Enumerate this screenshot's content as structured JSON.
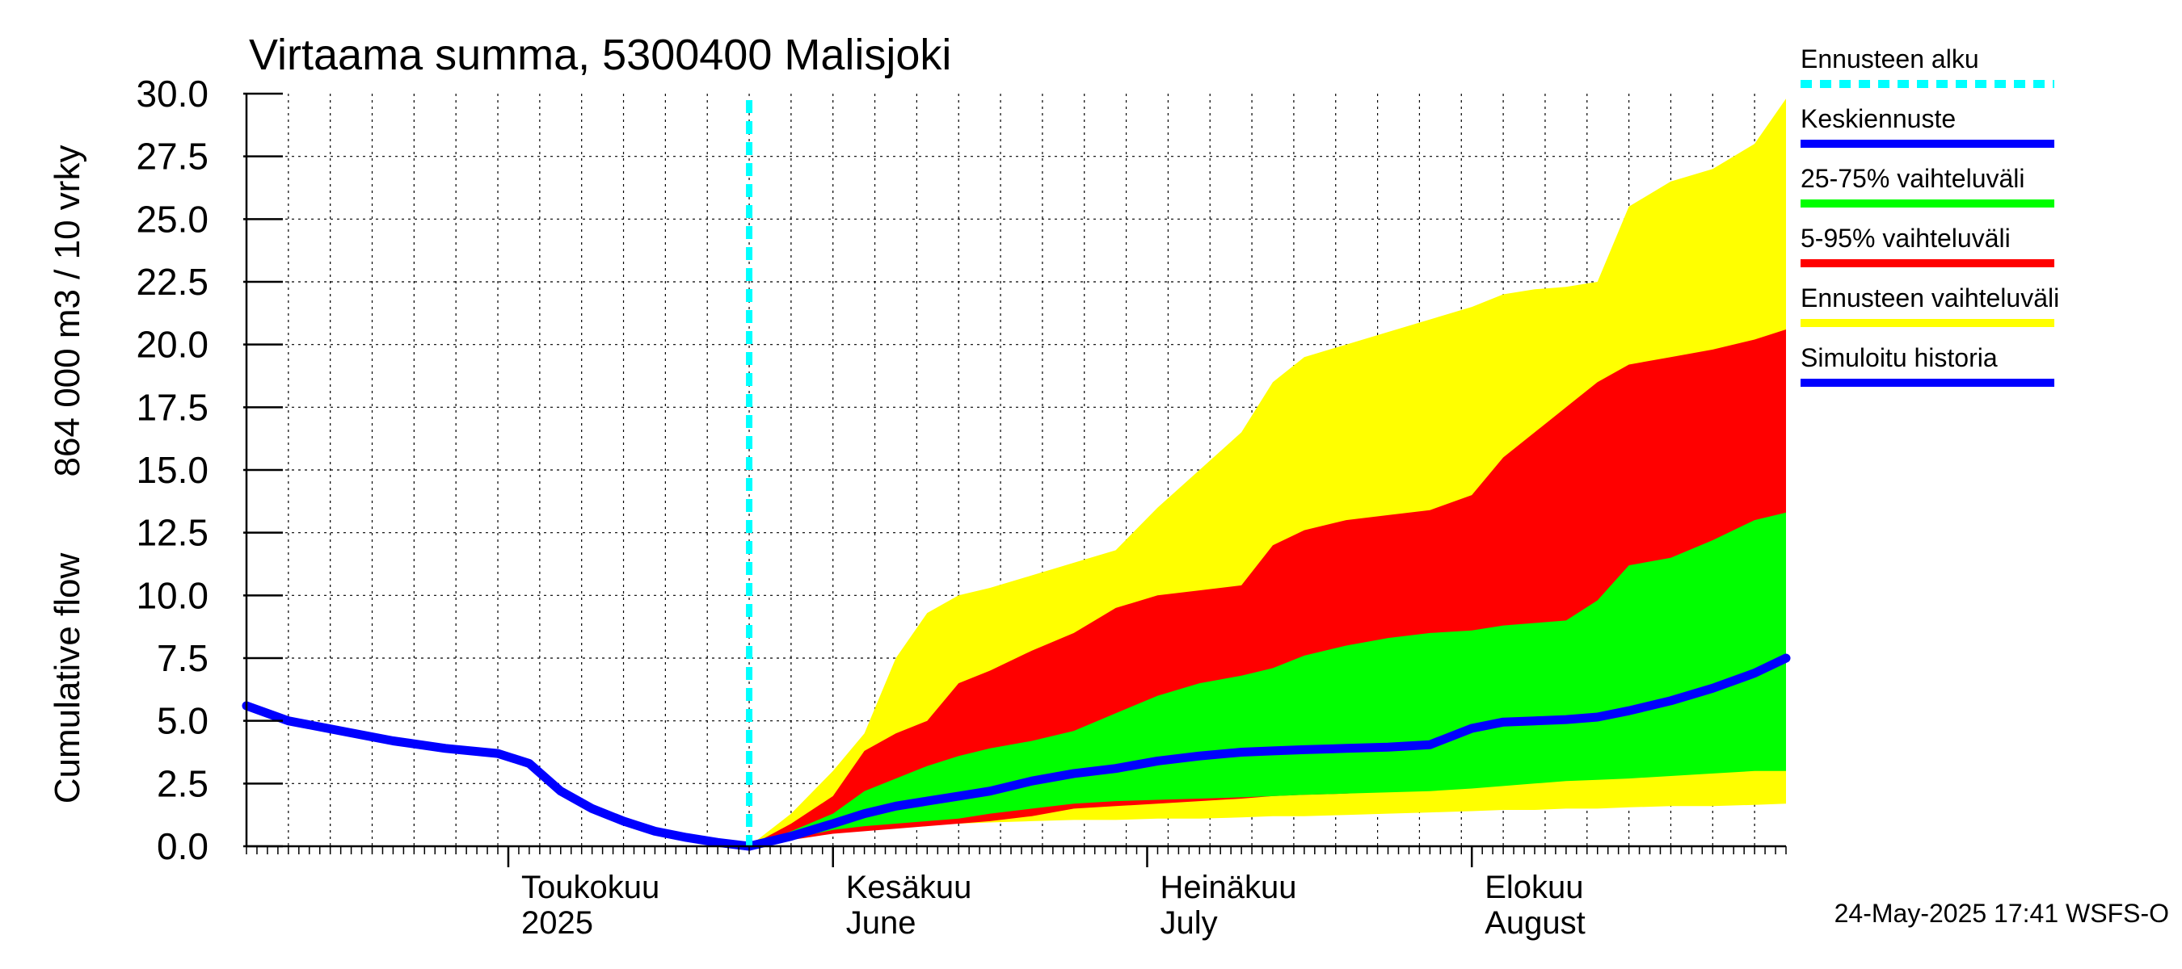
{
  "chart_data": {
    "type": "area",
    "title": "Virtaama summa, 5300400 Malisjoki",
    "ylabel_fi": "Cumulative flow",
    "ylabel_unit": "864 000 m3 / 10 vrky",
    "ylim": [
      0,
      30
    ],
    "yticks": [
      "0.0",
      "2.5",
      "5.0",
      "7.5",
      "10.0",
      "12.5",
      "15.0",
      "17.5",
      "20.0",
      "22.5",
      "25.0",
      "27.5",
      "30.0"
    ],
    "xlim": [
      "2025-04-06",
      "2025-08-31"
    ],
    "grid": true,
    "month_labels": [
      {
        "date": "2025-05-01",
        "line1": "Toukokuu",
        "line2": "2025"
      },
      {
        "date": "2025-06-01",
        "line1": "Kesäkuu",
        "line2": "June"
      },
      {
        "date": "2025-07-01",
        "line1": "Heinäkuu",
        "line2": "July"
      },
      {
        "date": "2025-08-01",
        "line1": "Elokuu",
        "line2": "August"
      }
    ],
    "forecast_start": "2025-05-24",
    "history": {
      "x": [
        "2025-04-06",
        "2025-04-10",
        "2025-04-15",
        "2025-04-20",
        "2025-04-25",
        "2025-04-30",
        "2025-05-03",
        "2025-05-06",
        "2025-05-09",
        "2025-05-12",
        "2025-05-15",
        "2025-05-18",
        "2025-05-21",
        "2025-05-24"
      ],
      "y": [
        5.6,
        5.0,
        4.6,
        4.2,
        3.9,
        3.7,
        3.3,
        2.2,
        1.5,
        1.0,
        0.6,
        0.35,
        0.15,
        0.0
      ]
    },
    "forecast_x": [
      "2025-05-24",
      "2025-05-28",
      "2025-06-01",
      "2025-06-04",
      "2025-06-07",
      "2025-06-10",
      "2025-06-13",
      "2025-06-16",
      "2025-06-20",
      "2025-06-24",
      "2025-06-28",
      "2025-07-02",
      "2025-07-06",
      "2025-07-10",
      "2025-07-13",
      "2025-07-16",
      "2025-07-20",
      "2025-07-24",
      "2025-07-28",
      "2025-08-01",
      "2025-08-04",
      "2025-08-07",
      "2025-08-10",
      "2025-08-13",
      "2025-08-16",
      "2025-08-20",
      "2025-08-24",
      "2025-08-28",
      "2025-08-31"
    ],
    "series": [
      {
        "name": "Ennusteen vaihteluväli",
        "color": "#ffff00",
        "lower": [
          0,
          0.3,
          0.6,
          0.7,
          0.8,
          0.85,
          0.9,
          0.95,
          1.0,
          1.05,
          1.05,
          1.1,
          1.1,
          1.15,
          1.2,
          1.2,
          1.25,
          1.3,
          1.35,
          1.4,
          1.45,
          1.45,
          1.5,
          1.5,
          1.55,
          1.6,
          1.6,
          1.65,
          1.7
        ],
        "upper": [
          0,
          1.3,
          3.0,
          4.5,
          7.5,
          9.3,
          10.0,
          10.3,
          10.8,
          11.3,
          11.8,
          13.5,
          15.0,
          16.5,
          18.5,
          19.5,
          20.0,
          20.5,
          21.0,
          21.5,
          22.0,
          22.2,
          22.3,
          22.5,
          25.5,
          26.5,
          27.0,
          28.0,
          29.8
        ]
      },
      {
        "name": "5-95% vaihteluväli",
        "color": "#ff0000",
        "lower": [
          0,
          0.25,
          0.5,
          0.6,
          0.7,
          0.8,
          0.9,
          1.0,
          1.2,
          1.5,
          1.6,
          1.7,
          1.8,
          1.9,
          2.0,
          2.05,
          2.1,
          2.2,
          2.3,
          2.5,
          2.6,
          2.8,
          2.9,
          3.0,
          3.1,
          3.2,
          3.3,
          3.6,
          3.8
        ],
        "upper": [
          0,
          0.9,
          2.0,
          3.8,
          4.5,
          5.0,
          6.5,
          7.0,
          7.8,
          8.5,
          9.5,
          10.0,
          10.2,
          10.4,
          12.0,
          12.6,
          13.0,
          13.2,
          13.4,
          14.0,
          15.5,
          16.5,
          17.5,
          18.5,
          19.2,
          19.5,
          19.8,
          20.2,
          20.6
        ]
      },
      {
        "name": "25-75% vaihteluväli",
        "color": "#00ff00",
        "lower": [
          0,
          0.3,
          0.65,
          0.8,
          0.9,
          1.0,
          1.1,
          1.3,
          1.5,
          1.7,
          1.8,
          1.85,
          1.9,
          1.95,
          2.0,
          2.05,
          2.1,
          2.15,
          2.2,
          2.3,
          2.4,
          2.5,
          2.6,
          2.65,
          2.7,
          2.8,
          2.9,
          3.0,
          3.0
        ],
        "upper": [
          0,
          0.6,
          1.3,
          2.2,
          2.7,
          3.2,
          3.6,
          3.9,
          4.2,
          4.6,
          5.3,
          6.0,
          6.5,
          6.8,
          7.1,
          7.6,
          8.0,
          8.3,
          8.5,
          8.6,
          8.8,
          8.9,
          9.0,
          9.8,
          11.2,
          11.5,
          12.2,
          13.0,
          13.3
        ]
      },
      {
        "name": "Keskiennuste",
        "color": "#0000ff",
        "values": [
          0,
          0.4,
          0.9,
          1.3,
          1.6,
          1.8,
          2.0,
          2.2,
          2.6,
          2.9,
          3.1,
          3.4,
          3.6,
          3.75,
          3.8,
          3.85,
          3.9,
          3.95,
          4.05,
          4.7,
          4.95,
          5.0,
          5.05,
          5.15,
          5.4,
          5.8,
          6.3,
          6.9,
          7.5
        ]
      }
    ],
    "legend": [
      {
        "label": "Ennusteen alku",
        "color": "#00ffff",
        "style": "dashed"
      },
      {
        "label": "Keskiennuste",
        "color": "#0000ff",
        "style": "solid"
      },
      {
        "label": "25-75% vaihteluväli",
        "color": "#00ff00",
        "style": "solid"
      },
      {
        "label": "5-95% vaihteluväli",
        "color": "#ff0000",
        "style": "solid"
      },
      {
        "label": "Ennusteen vaihteluväli",
        "color": "#ffff00",
        "style": "solid"
      },
      {
        "label": "Simuloitu historia",
        "color": "#0000ff",
        "style": "solid"
      }
    ],
    "legend_position": "right"
  },
  "footer": "24-May-2025 17:41 WSFS-O"
}
